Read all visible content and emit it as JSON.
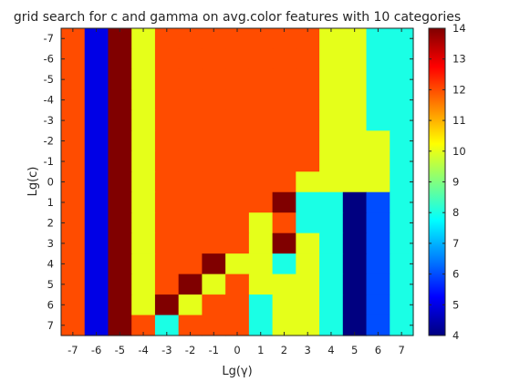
{
  "chart_data": {
    "type": "heatmap",
    "title": "grid search for c and gamma on avg.color features with 10 categories",
    "xlabel": "Lg(γ)",
    "ylabel": "Lg(c)",
    "x_labels": [
      "-7",
      "-6",
      "-5",
      "-4",
      "-3",
      "-2",
      "-1",
      "0",
      "1",
      "2",
      "3",
      "4",
      "5",
      "6",
      "7"
    ],
    "y_labels": [
      "-7",
      "-6",
      "-5",
      "-4",
      "-3",
      "-2",
      "-1",
      "0",
      "1",
      "2",
      "3",
      "4",
      "5",
      "6",
      "7"
    ],
    "colorscale": "jet",
    "zlim": [
      4,
      14
    ],
    "colorbar_ticks": [
      "4",
      "5",
      "6",
      "7",
      "8",
      "9",
      "10",
      "11",
      "12",
      "13",
      "14"
    ],
    "values": [
      [
        12,
        5,
        14,
        10,
        12,
        12,
        12,
        12,
        12,
        12,
        12,
        10,
        10,
        8,
        8
      ],
      [
        12,
        5,
        14,
        10,
        12,
        12,
        12,
        12,
        12,
        12,
        12,
        10,
        10,
        8,
        8
      ],
      [
        12,
        5,
        14,
        10,
        12,
        12,
        12,
        12,
        12,
        12,
        12,
        10,
        10,
        8,
        8
      ],
      [
        12,
        5,
        14,
        10,
        12,
        12,
        12,
        12,
        12,
        12,
        12,
        10,
        10,
        8,
        8
      ],
      [
        12,
        5,
        14,
        10,
        12,
        12,
        12,
        12,
        12,
        12,
        12,
        10,
        10,
        8,
        8
      ],
      [
        12,
        5,
        14,
        10,
        12,
        12,
        12,
        12,
        12,
        12,
        12,
        10,
        10,
        10,
        8
      ],
      [
        12,
        5,
        14,
        10,
        12,
        12,
        12,
        12,
        12,
        12,
        12,
        10,
        10,
        10,
        8
      ],
      [
        12,
        5,
        14,
        10,
        12,
        12,
        12,
        12,
        12,
        12,
        10,
        10,
        10,
        10,
        8
      ],
      [
        12,
        5,
        14,
        10,
        12,
        12,
        12,
        12,
        12,
        14,
        8,
        8,
        4,
        6,
        8
      ],
      [
        12,
        5,
        14,
        10,
        12,
        12,
        12,
        12,
        10,
        12,
        8,
        8,
        4,
        6,
        8
      ],
      [
        12,
        5,
        14,
        10,
        12,
        12,
        12,
        12,
        10,
        14,
        10,
        8,
        4,
        6,
        8
      ],
      [
        12,
        5,
        14,
        10,
        12,
        12,
        14,
        10,
        10,
        8,
        10,
        8,
        4,
        6,
        8
      ],
      [
        12,
        5,
        14,
        10,
        12,
        14,
        10,
        12,
        10,
        10,
        10,
        8,
        4,
        6,
        8
      ],
      [
        12,
        5,
        14,
        10,
        14,
        10,
        12,
        12,
        8,
        10,
        10,
        8,
        4,
        6,
        8
      ],
      [
        12,
        5,
        14,
        12,
        8,
        12,
        12,
        12,
        8,
        10,
        10,
        8,
        4,
        6,
        8
      ]
    ]
  }
}
